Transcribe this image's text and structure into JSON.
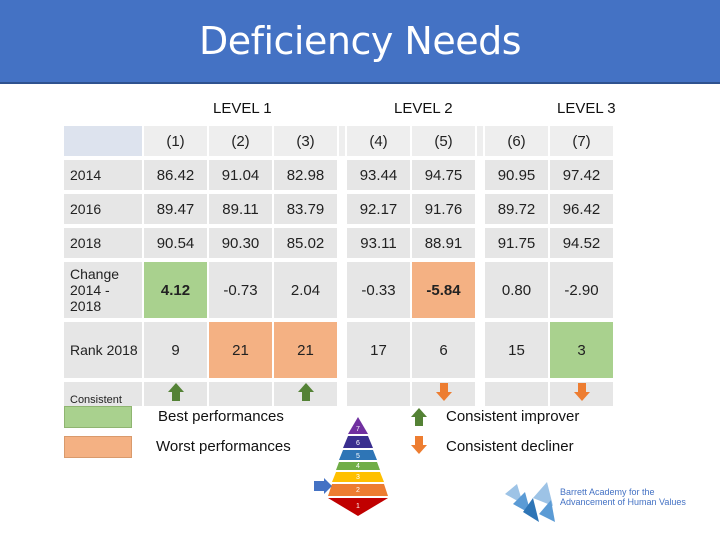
{
  "title": "Deficiency Needs",
  "levels": [
    "LEVEL 1",
    "LEVEL 2",
    "LEVEL 3"
  ],
  "columns": [
    "(1)",
    "(2)",
    "(3)",
    "(4)",
    "(5)",
    "(6)",
    "(7)"
  ],
  "rows": [
    {
      "label": "2014",
      "values": [
        "86.42",
        "91.04",
        "82.98",
        "93.44",
        "94.75",
        "90.95",
        "97.42"
      ]
    },
    {
      "label": "2016",
      "values": [
        "89.47",
        "89.11",
        "83.79",
        "92.17",
        "91.76",
        "89.72",
        "96.42"
      ]
    },
    {
      "label": "2018",
      "values": [
        "90.54",
        "90.30",
        "85.02",
        "93.11",
        "88.91",
        "91.75",
        "94.52"
      ]
    },
    {
      "label": "Change 2014 - 2018",
      "values": [
        "4.12",
        "-0.73",
        "2.04",
        "-0.33",
        "-5.84",
        "0.80",
        "-2.90"
      ]
    },
    {
      "label": "Rank 2018",
      "values": [
        "9",
        "21",
        "21",
        "17",
        "6",
        "15",
        "3"
      ]
    }
  ],
  "consistent_label": "Consistent",
  "consistent": [
    "up",
    "",
    "up",
    "",
    "down",
    "",
    "down"
  ],
  "legend": {
    "best": "Best performances",
    "worst": "Worst performances",
    "improver": "Consistent improver",
    "decliner": "Consistent decliner"
  },
  "pyramid_levels": [
    "7",
    "6",
    "5",
    "4",
    "3",
    "2",
    "1"
  ],
  "logo_text": [
    "Barrett Academy for the",
    "Advancement of Human Values"
  ],
  "colors": {
    "header": "#4472c4",
    "best": "#a9d18e",
    "worst": "#f4b183",
    "up": "#548235",
    "down": "#ed7d31",
    "cell": "#e6e6e6"
  }
}
